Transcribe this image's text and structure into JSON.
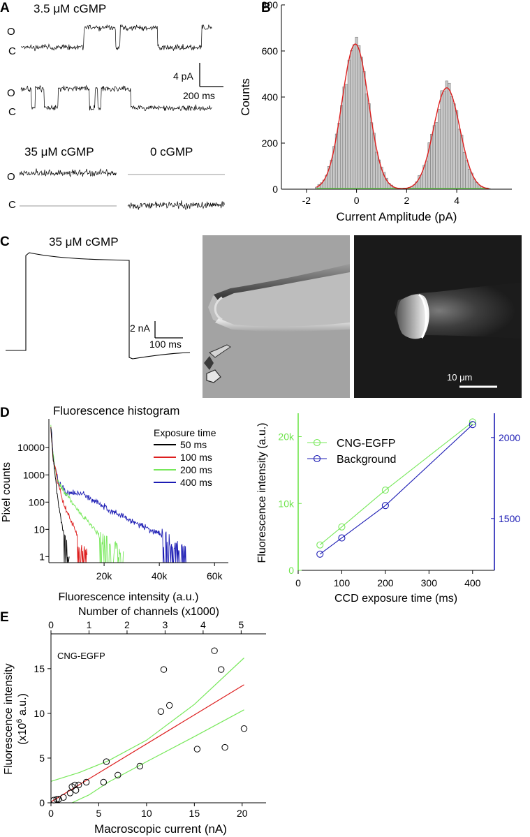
{
  "panel_letters": [
    "A",
    "B",
    "C",
    "D",
    "E"
  ],
  "colors": {
    "black": "#000000",
    "red": "#dd1f1f",
    "green": "#77e85a",
    "blue": "#1c1cb4",
    "hist_fill": "#c8c8c8",
    "axis_green": "#6fe44c",
    "axis_blue": "#1c1cb4"
  },
  "panel_a": {
    "label_35": "3.5 μM cGMP",
    "label_35b": "35 μM cGMP",
    "label_0": "0 cGMP",
    "state_open": "O",
    "state_closed": "C",
    "scale_current": "4 pA",
    "scale_time": "200 ms"
  },
  "panel_c": {
    "label": "35 μM cGMP",
    "scale_current": "2 nA",
    "scale_time": "100 ms",
    "scale_bar_label": "10 μm",
    "images": [
      "brightfield-pipette-image",
      "fluorescence-pipette-image"
    ]
  },
  "chart_data": [
    {
      "panel": "B",
      "type": "bar",
      "xlabel": "Current Amplitude (pA)",
      "ylabel": "Counts",
      "xlim": [
        -3,
        6.2
      ],
      "ylim": [
        0,
        800
      ],
      "xticks": [
        -2,
        0,
        2,
        4
      ],
      "yticks": [
        0,
        200,
        400,
        600,
        800
      ],
      "bin_width": 0.1,
      "histogram_peaks": [
        {
          "center": -0.05,
          "sd": 0.53,
          "height": 630
        },
        {
          "center": 3.6,
          "sd": 0.52,
          "height": 440
        }
      ],
      "series": [
        {
          "name": "",
          "kind": "gaussian fit",
          "color": "#dd1f1f"
        }
      ]
    },
    {
      "panel": "D-left",
      "type": "line",
      "title": "Fluorescence histogram",
      "xlabel": "Fluorescence intensity (a.u.)",
      "ylabel": "Pixel counts",
      "yscale": "log",
      "xlim": [
        0,
        65000
      ],
      "ylim": [
        0.6,
        80000
      ],
      "xticks": [
        "20k",
        "40k",
        "60k"
      ],
      "xtick_values": [
        20000,
        40000,
        60000
      ],
      "yticks": [
        "1",
        "10",
        "100",
        "1000",
        "10000"
      ],
      "ytick_values": [
        1,
        10,
        100,
        1000,
        10000
      ],
      "legend_title": "Exposure time",
      "series": [
        {
          "name": "50 ms",
          "color": "#000000",
          "end_x": 7500,
          "points": [
            [
              700,
              60000
            ],
            [
              1500,
              5000
            ],
            [
              2500,
              600
            ],
            [
              3500,
              80
            ],
            [
              5000,
              10
            ],
            [
              7000,
              1.5
            ]
          ]
        },
        {
          "name": "100 ms",
          "color": "#dd1f1f",
          "end_x": 14000,
          "points": [
            [
              700,
              60000
            ],
            [
              1500,
              4000
            ],
            [
              3000,
              700
            ],
            [
              5000,
              110
            ],
            [
              8000,
              20
            ],
            [
              11000,
              4
            ],
            [
              13500,
              1.3
            ]
          ]
        },
        {
          "name": "200 ms",
          "color": "#77e85a",
          "end_x": 27000,
          "points": [
            [
              700,
              60000
            ],
            [
              1500,
              5000
            ],
            [
              3000,
              700
            ],
            [
              5000,
              300
            ],
            [
              10000,
              60
            ],
            [
              15000,
              15
            ],
            [
              20000,
              4
            ],
            [
              26000,
              1.5
            ]
          ]
        },
        {
          "name": "400 ms",
          "color": "#1c1cb4",
          "end_x": 50000,
          "points": [
            [
              700,
              65000
            ],
            [
              1800,
              3000
            ],
            [
              3500,
              500
            ],
            [
              6000,
              230
            ],
            [
              12000,
              200
            ],
            [
              20000,
              70
            ],
            [
              30000,
              20
            ],
            [
              40000,
              7
            ],
            [
              45000,
              3
            ],
            [
              49000,
              2
            ]
          ]
        }
      ]
    },
    {
      "panel": "D-right",
      "type": "line",
      "xlabel": "CCD exposure time (ms)",
      "ylabel": "Fluorescence intensity (a.u.)",
      "xlim": [
        0,
        450
      ],
      "xticks": [
        0,
        100,
        200,
        300,
        400
      ],
      "y_left_lim": [
        0,
        23500
      ],
      "y_left_ticks": [
        "0",
        "10k",
        "20k"
      ],
      "y_left_tick_values": [
        0,
        10000,
        20000
      ],
      "y_right_lim": [
        1180,
        2150
      ],
      "y_right_ticks": [
        1500,
        2000
      ],
      "series": [
        {
          "name": "CNG-EGFP",
          "color": "#77e85a",
          "axis": "left",
          "x": [
            50,
            100,
            200,
            400
          ],
          "y": [
            3800,
            6500,
            12000,
            22200
          ]
        },
        {
          "name": "Background",
          "color": "#1c1cb4",
          "axis": "right",
          "x": [
            50,
            100,
            200,
            400
          ],
          "y": [
            1280,
            1380,
            1580,
            2080
          ]
        }
      ]
    },
    {
      "panel": "E",
      "type": "scatter",
      "xlabel": "Macroscopic current (nA)",
      "x2label": "Number of channels (x1000)",
      "ylabel_line1": "Fluorescence intensity",
      "ylabel_line2_pre": "(x10",
      "ylabel_line2_sup": "6",
      "ylabel_line2_post": " a.u.)",
      "annotation": "CNG-EGFP",
      "xlim": [
        0,
        22.5
      ],
      "ylim": [
        0,
        18.5
      ],
      "xticks": [
        0,
        5,
        10,
        15,
        20
      ],
      "yticks": [
        0,
        5,
        10,
        15
      ],
      "x2ticks": [
        0,
        1,
        2,
        3,
        4,
        5
      ],
      "x2_per_nA": 0.2513,
      "points": [
        [
          0.3,
          0.3
        ],
        [
          0.6,
          0.4
        ],
        [
          0.8,
          0.4
        ],
        [
          1.3,
          0.6
        ],
        [
          2.0,
          1.1
        ],
        [
          2.2,
          1.8
        ],
        [
          2.5,
          2.0
        ],
        [
          2.6,
          1.4
        ],
        [
          2.9,
          2.0
        ],
        [
          3.7,
          2.3
        ],
        [
          5.5,
          2.3
        ],
        [
          5.8,
          4.6
        ],
        [
          7.0,
          3.1
        ],
        [
          9.3,
          4.1
        ],
        [
          11.5,
          10.2
        ],
        [
          11.8,
          14.9
        ],
        [
          12.4,
          10.9
        ],
        [
          15.3,
          6.0
        ],
        [
          17.1,
          17.0
        ],
        [
          17.8,
          14.9
        ],
        [
          18.2,
          6.2
        ],
        [
          20.2,
          8.3
        ]
      ],
      "fit_line": {
        "color": "#dd1f1f",
        "x": [
          0,
          20.2
        ],
        "y": [
          0.1,
          13.2
        ]
      },
      "confidence_upper": {
        "color": "#77e85a",
        "x": [
          0,
          3,
          6,
          10,
          15,
          20.2
        ],
        "y": [
          2.4,
          3.4,
          4.7,
          7.0,
          11.0,
          16.2
        ]
      },
      "confidence_lower": {
        "color": "#77e85a",
        "x": [
          2.2,
          4,
          6,
          10,
          15,
          20.2
        ],
        "y": [
          0.0,
          0.9,
          2.3,
          4.6,
          7.4,
          10.4
        ]
      }
    }
  ]
}
